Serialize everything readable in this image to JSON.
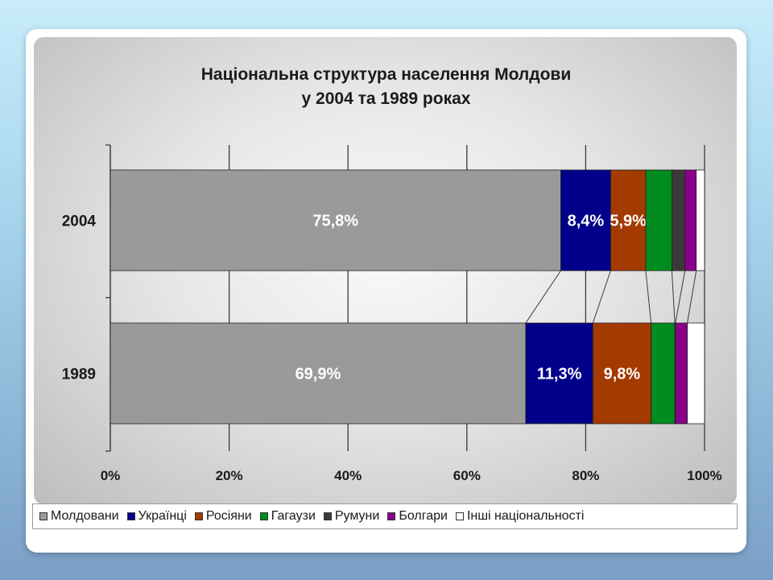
{
  "chart_data": {
    "type": "bar",
    "orientation": "horizontal",
    "stacked": "percent",
    "title": [
      "Національна структура населення Молдови",
      "у 2004 та 1989 роках"
    ],
    "categories": [
      "2004",
      "1989"
    ],
    "xlim": [
      0,
      100
    ],
    "xticks": [
      "0%",
      "20%",
      "40%",
      "60%",
      "80%",
      "100%"
    ],
    "grid": true,
    "legend_position": "bottom",
    "series": [
      {
        "name": "Молдовани",
        "color": "#9a9a9a",
        "values": [
          75.8,
          69.9
        ],
        "labels": [
          "75,8%",
          "69,9%"
        ]
      },
      {
        "name": "Українці",
        "color": "#00008b",
        "values": [
          8.4,
          11.3
        ],
        "labels": [
          "8,4%",
          "11,3%"
        ]
      },
      {
        "name": "Росіяни",
        "color": "#a33a00",
        "values": [
          5.9,
          9.8
        ],
        "labels": [
          "5,9%",
          "9,8%"
        ]
      },
      {
        "name": "Гагаузи",
        "color": "#008c1e",
        "values": [
          4.4,
          4.0
        ],
        "labels": [
          "",
          ""
        ]
      },
      {
        "name": "Румуни",
        "color": "#3a3a3a",
        "values": [
          2.2,
          0.1
        ],
        "labels": [
          "",
          ""
        ]
      },
      {
        "name": "Болгари",
        "color": "#8b008b",
        "values": [
          1.9,
          2.0
        ],
        "labels": [
          "",
          ""
        ]
      },
      {
        "name": "Інші національності",
        "color": "#ffffff",
        "values": [
          1.4,
          2.9
        ],
        "labels": [
          "",
          ""
        ]
      }
    ]
  }
}
